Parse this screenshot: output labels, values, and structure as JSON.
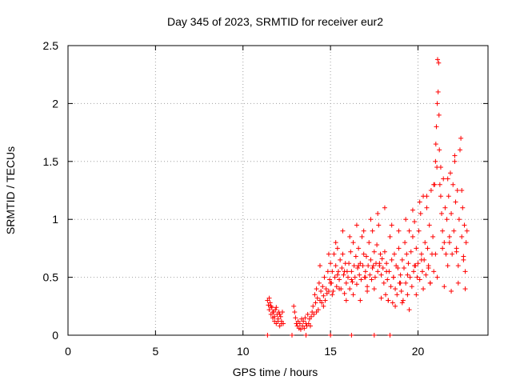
{
  "chart_data": {
    "type": "scatter",
    "title": "Day 345 of 2023, SRMTID for receiver eur2",
    "xlabel": "GPS time / hours",
    "ylabel": "SRMTID / TECUs",
    "xlim": [
      0,
      24
    ],
    "ylim": [
      0,
      2.5
    ],
    "xticks": [
      0,
      5,
      10,
      15,
      20
    ],
    "xtick_labels": [
      "0",
      "5",
      "10",
      "15",
      "20"
    ],
    "yticks": [
      0,
      0.5,
      1,
      1.5,
      2,
      2.5
    ],
    "ytick_labels": [
      "0",
      "0.5",
      "1",
      "1.5",
      "2",
      "2.5"
    ],
    "grid": true,
    "marker": "+",
    "series": [
      {
        "name": "SRMTID",
        "color": "#ff0000",
        "x": [
          11.4,
          11.45,
          11.5,
          11.55,
          11.6,
          11.65,
          11.7,
          11.75,
          11.8,
          11.85,
          11.9,
          11.95,
          12.0,
          12.05,
          12.1,
          12.15,
          12.2,
          12.25,
          12.3,
          11.5,
          11.6,
          11.7,
          11.8,
          11.9,
          12.0,
          12.1,
          12.2,
          12.9,
          12.95,
          13.0,
          13.05,
          13.1,
          13.15,
          13.2,
          13.25,
          13.3,
          13.35,
          13.4,
          13.45,
          13.5,
          13.55,
          13.6,
          13.65,
          13.7,
          13.75,
          13.8,
          13.85,
          13.9,
          13.95,
          14.0,
          14.05,
          14.1,
          14.15,
          14.2,
          14.25,
          14.3,
          14.35,
          14.4,
          14.45,
          14.5,
          14.55,
          14.6,
          14.65,
          14.7,
          14.75,
          14.8,
          14.85,
          14.9,
          14.95,
          15.0,
          15.05,
          15.1,
          15.15,
          15.2,
          15.25,
          15.3,
          15.35,
          15.4,
          15.45,
          15.5,
          15.55,
          15.6,
          15.65,
          15.7,
          15.75,
          15.8,
          15.85,
          15.9,
          15.95,
          16.0,
          16.05,
          16.1,
          16.15,
          16.2,
          16.25,
          16.3,
          16.35,
          16.4,
          16.45,
          16.5,
          16.55,
          16.6,
          16.65,
          16.7,
          16.75,
          16.8,
          16.85,
          16.9,
          16.95,
          17.0,
          17.05,
          17.1,
          17.15,
          17.2,
          17.25,
          17.3,
          17.35,
          17.4,
          17.45,
          17.5,
          17.55,
          17.6,
          17.65,
          17.7,
          17.75,
          17.8,
          17.85,
          17.9,
          17.95,
          18.0,
          18.05,
          18.1,
          18.15,
          18.2,
          18.25,
          18.3,
          18.35,
          18.4,
          18.45,
          18.5,
          18.55,
          18.6,
          18.65,
          18.7,
          18.75,
          18.8,
          18.85,
          18.9,
          18.95,
          19.0,
          19.05,
          19.1,
          19.15,
          19.2,
          19.25,
          19.3,
          19.35,
          19.4,
          19.45,
          19.5,
          19.55,
          19.6,
          19.65,
          19.7,
          19.75,
          19.8,
          19.85,
          19.9,
          19.95,
          20.0,
          20.05,
          20.1,
          20.15,
          20.2,
          20.25,
          20.3,
          20.35,
          20.4,
          20.45,
          20.5,
          20.55,
          20.6,
          20.65,
          20.7,
          20.75,
          20.8,
          20.85,
          20.9,
          20.95,
          21.0,
          21.02,
          21.05,
          21.08,
          21.1,
          21.12,
          21.15,
          21.18,
          21.2,
          21.22,
          21.25,
          21.3,
          21.35,
          21.4,
          21.45,
          21.5,
          21.55,
          21.6,
          21.65,
          21.7,
          21.75,
          21.8,
          21.85,
          21.9,
          21.95,
          22.0,
          22.05,
          22.1,
          22.15,
          22.2,
          22.25,
          22.3,
          22.35,
          22.4,
          22.45,
          22.5,
          22.55,
          22.6,
          22.65,
          22.7,
          22.75,
          22.8,
          14.2,
          14.6,
          15.1,
          15.5,
          15.9,
          16.3,
          16.7,
          17.1,
          17.5,
          17.9,
          18.3,
          18.7,
          19.1,
          19.5,
          19.9,
          20.3,
          20.7,
          21.1,
          21.5,
          21.9,
          22.3,
          22.7,
          14.4,
          14.9,
          15.3,
          15.7,
          16.1,
          16.5,
          16.9,
          17.3,
          17.7,
          18.1,
          18.5,
          18.9,
          19.3,
          19.7,
          20.1,
          20.5,
          20.9,
          21.3,
          21.7,
          22.1,
          22.5,
          15.0,
          15.4,
          15.8,
          16.2,
          16.6,
          17.0,
          17.4,
          17.8,
          18.2,
          18.6,
          19.0,
          19.4,
          19.8,
          20.2,
          20.6,
          21.0,
          21.4,
          21.8,
          22.2,
          22.6,
          11.4,
          12.8,
          13.6,
          15.0,
          16.2,
          17.5,
          18.4
        ],
        "y": [
          0.3,
          0.26,
          0.22,
          0.28,
          0.18,
          0.24,
          0.15,
          0.2,
          0.12,
          0.22,
          0.1,
          0.18,
          0.14,
          0.2,
          0.08,
          0.16,
          0.12,
          0.2,
          0.1,
          0.32,
          0.25,
          0.2,
          0.16,
          0.24,
          0.12,
          0.18,
          0.1,
          0.25,
          0.2,
          0.15,
          0.1,
          0.08,
          0.12,
          0.06,
          0.1,
          0.05,
          0.14,
          0.08,
          0.12,
          0.06,
          0.15,
          0.1,
          0.08,
          0.18,
          0.1,
          0.14,
          0.08,
          0.16,
          0.2,
          0.25,
          0.18,
          0.35,
          0.28,
          0.4,
          0.32,
          0.22,
          0.45,
          0.3,
          0.38,
          0.28,
          0.42,
          0.34,
          0.5,
          0.3,
          0.4,
          0.36,
          0.55,
          0.38,
          0.48,
          0.62,
          0.45,
          0.55,
          0.38,
          0.7,
          0.5,
          0.6,
          0.42,
          0.75,
          0.55,
          0.48,
          0.65,
          0.4,
          0.58,
          0.7,
          0.52,
          0.36,
          0.62,
          0.45,
          0.55,
          0.5,
          0.62,
          0.4,
          0.72,
          0.55,
          0.46,
          0.8,
          0.6,
          0.5,
          0.68,
          0.44,
          0.58,
          0.75,
          0.52,
          0.62,
          0.48,
          0.85,
          0.6,
          0.7,
          0.5,
          0.55,
          0.68,
          0.42,
          0.6,
          0.8,
          0.52,
          0.65,
          0.48,
          0.9,
          0.6,
          0.72,
          0.5,
          0.62,
          0.78,
          0.55,
          0.95,
          0.6,
          0.7,
          0.52,
          0.66,
          0.58,
          0.45,
          0.72,
          0.35,
          0.62,
          0.48,
          0.3,
          0.55,
          0.85,
          0.42,
          0.65,
          0.28,
          0.5,
          0.7,
          0.4,
          0.6,
          0.35,
          0.58,
          0.75,
          0.45,
          0.52,
          0.38,
          0.65,
          0.3,
          0.58,
          0.8,
          0.45,
          0.7,
          0.35,
          0.62,
          0.9,
          0.5,
          0.72,
          0.42,
          0.85,
          0.55,
          0.98,
          0.6,
          0.75,
          0.5,
          0.62,
          0.9,
          0.48,
          1.05,
          0.7,
          0.55,
          1.2,
          0.65,
          0.8,
          0.52,
          1.1,
          0.75,
          0.6,
          0.95,
          0.45,
          1.25,
          0.7,
          0.85,
          0.55,
          1.3,
          1.5,
          1.65,
          1.8,
          1.45,
          2.0,
          2.38,
          2.1,
          2.35,
          1.9,
          1.6,
          1.3,
          1.2,
          1.05,
          0.9,
          1.35,
          0.8,
          1.1,
          0.7,
          1.0,
          0.6,
          1.2,
          0.85,
          1.4,
          1.05,
          0.7,
          1.3,
          0.9,
          1.55,
          1.15,
          0.75,
          1.25,
          0.6,
          1.0,
          1.6,
          1.7,
          0.85,
          1.1,
          0.65,
          0.95,
          0.55,
          0.8,
          0.9,
          0.2,
          0.25,
          0.35,
          0.4,
          0.3,
          0.35,
          0.3,
          0.38,
          0.4,
          0.32,
          0.3,
          0.25,
          0.28,
          0.22,
          0.35,
          0.4,
          0.45,
          0.5,
          0.42,
          0.38,
          0.45,
          0.4,
          0.6,
          0.7,
          0.8,
          0.9,
          0.85,
          0.95,
          0.9,
          1.0,
          1.05,
          1.1,
          0.95,
          0.9,
          1.0,
          1.08,
          1.15,
          1.2,
          1.3,
          1.45,
          1.35,
          1.5,
          1.25,
          0.45,
          0.52,
          0.55,
          0.48,
          0.6,
          0.5,
          0.58,
          0.62,
          0.55,
          0.5,
          0.45,
          0.52,
          0.6,
          0.65,
          0.58,
          0.7,
          0.75,
          0.8,
          0.72,
          0.68,
          0.0,
          0.0,
          0.0,
          0.0,
          0.0,
          0.0,
          0.0
        ]
      }
    ]
  }
}
